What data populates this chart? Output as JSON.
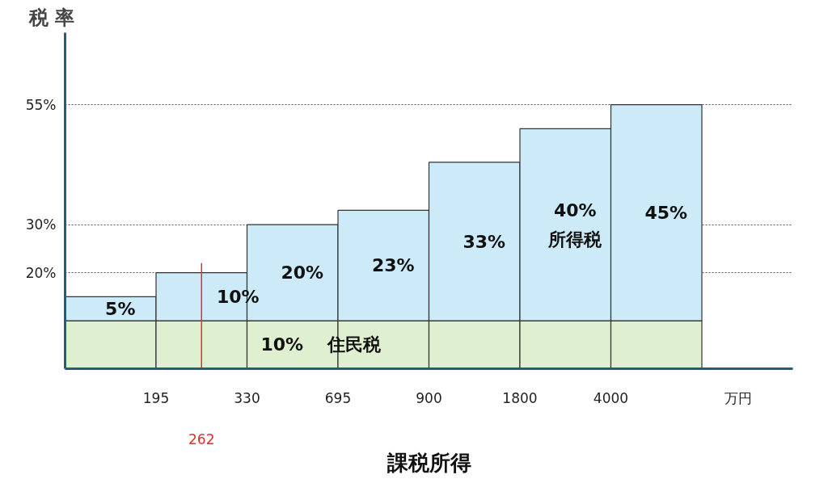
{
  "chart_data": {
    "type": "bar",
    "stacked": true,
    "ylabel": "税 率",
    "xlabel": "課税所得",
    "categories": [
      "195",
      "330",
      "695",
      "900",
      "1800",
      "4000",
      null
    ],
    "ylim": [
      0,
      70
    ],
    "yticks": [
      {
        "value": 20,
        "label": "20%"
      },
      {
        "value": 30,
        "label": "30%"
      },
      {
        "value": 55,
        "label": "55%"
      }
    ],
    "grid": "y",
    "series": [
      {
        "color": "#dff0d0",
        "values": [
          10,
          10,
          10,
          10,
          10,
          10,
          10
        ],
        "value_labels": [
          null,
          null,
          "10%　 住民税",
          null,
          null,
          null,
          null
        ]
      },
      {
        "color": "#cdeaf9",
        "values": [
          5,
          10,
          20,
          23,
          33,
          40,
          45
        ],
        "value_labels": [
          "5%",
          "10%",
          "20%",
          "23%",
          "33%",
          "40%\n所得税",
          "45%"
        ]
      }
    ],
    "ref_lines": [
      {
        "axis": "x",
        "value": "330",
        "label": "262",
        "color": "#e03030"
      }
    ],
    "annotations": [
      "万円"
    ]
  }
}
